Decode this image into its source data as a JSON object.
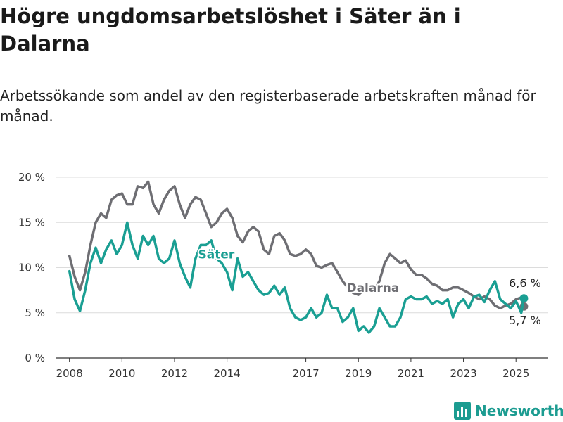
{
  "header": {
    "title": "Högre ungdomsarbetslöshet i Säter än i Dalarna",
    "subtitle": "Arbetssökande som andel av den registerbaserade arbetskraften månad för månad."
  },
  "brand": {
    "name": "Newsworthy",
    "color": "#1c9c91"
  },
  "chart_data": {
    "type": "line",
    "title": "Högre ungdomsarbetslöshet i Säter än i Dalarna",
    "subtitle": "Arbetssökande som andel av den registerbaserade arbetskraften månad för månad.",
    "xlabel": "",
    "ylabel": "",
    "xlim": [
      2007.5,
      2026.2
    ],
    "ylim": [
      0,
      20
    ],
    "y_ticks": [
      0,
      5,
      10,
      15,
      20
    ],
    "y_tick_labels": [
      "0 %",
      "5 %",
      "10 %",
      "15 %",
      "20 %"
    ],
    "x_ticks": [
      2008,
      2010,
      2012,
      2014,
      2017,
      2019,
      2021,
      2023,
      2025
    ],
    "x_tick_labels": [
      "2008",
      "2010",
      "2012",
      "2014",
      "2017",
      "2019",
      "2021",
      "2023",
      "2025"
    ],
    "grid": true,
    "legend": "inline labels",
    "series": [
      {
        "name": "Dalarna",
        "color": "#6e6e73",
        "end_label": "5,7 %",
        "x": [
          2008.0,
          2008.2,
          2008.4,
          2008.6,
          2008.8,
          2009.0,
          2009.2,
          2009.4,
          2009.6,
          2009.8,
          2010.0,
          2010.2,
          2010.4,
          2010.6,
          2010.8,
          2011.0,
          2011.2,
          2011.4,
          2011.6,
          2011.8,
          2012.0,
          2012.2,
          2012.4,
          2012.6,
          2012.8,
          2013.0,
          2013.2,
          2013.4,
          2013.6,
          2013.8,
          2014.0,
          2014.2,
          2014.4,
          2014.6,
          2014.8,
          2015.0,
          2015.2,
          2015.4,
          2015.6,
          2015.8,
          2016.0,
          2016.2,
          2016.4,
          2016.6,
          2016.8,
          2017.0,
          2017.2,
          2017.4,
          2017.6,
          2017.8,
          2018.0,
          2018.2,
          2018.4,
          2018.6,
          2018.8,
          2019.0,
          2019.2,
          2019.4,
          2019.6,
          2019.8,
          2020.0,
          2020.2,
          2020.4,
          2020.6,
          2020.8,
          2021.0,
          2021.2,
          2021.4,
          2021.6,
          2021.8,
          2022.0,
          2022.2,
          2022.4,
          2022.6,
          2022.8,
          2023.0,
          2023.2,
          2023.4,
          2023.6,
          2023.8,
          2024.0,
          2024.2,
          2024.4,
          2024.6,
          2024.8,
          2025.0,
          2025.2,
          2025.3
        ],
        "y": [
          11.3,
          9.0,
          7.5,
          9.5,
          12.5,
          15.0,
          16.0,
          15.5,
          17.5,
          18.0,
          18.2,
          17.0,
          17.0,
          19.0,
          18.8,
          19.5,
          17.0,
          16.0,
          17.5,
          18.5,
          19.0,
          17.0,
          15.5,
          17.0,
          17.8,
          17.5,
          16.0,
          14.5,
          15.0,
          16.0,
          16.5,
          15.5,
          13.5,
          12.8,
          14.0,
          14.5,
          14.0,
          12.0,
          11.5,
          13.5,
          13.8,
          13.0,
          11.5,
          11.3,
          11.5,
          12.0,
          11.5,
          10.2,
          10.0,
          10.3,
          10.5,
          9.5,
          8.5,
          7.8,
          7.2,
          7.0,
          7.5,
          7.3,
          7.5,
          8.5,
          10.5,
          11.5,
          11.0,
          10.5,
          10.8,
          9.8,
          9.2,
          9.2,
          8.8,
          8.2,
          8.0,
          7.5,
          7.5,
          7.8,
          7.8,
          7.5,
          7.2,
          6.8,
          6.5,
          6.8,
          6.5,
          5.8,
          5.5,
          5.8,
          6.0,
          6.5,
          6.7,
          5.7
        ]
      },
      {
        "name": "Säter",
        "color": "#1a9f93",
        "end_label": "6,6 %",
        "x": [
          2008.0,
          2008.2,
          2008.4,
          2008.6,
          2008.8,
          2009.0,
          2009.2,
          2009.4,
          2009.6,
          2009.8,
          2010.0,
          2010.2,
          2010.4,
          2010.6,
          2010.8,
          2011.0,
          2011.2,
          2011.4,
          2011.6,
          2011.8,
          2012.0,
          2012.2,
          2012.4,
          2012.6,
          2012.8,
          2013.0,
          2013.2,
          2013.4,
          2013.6,
          2013.8,
          2014.0,
          2014.2,
          2014.4,
          2014.6,
          2014.8,
          2015.0,
          2015.2,
          2015.4,
          2015.6,
          2015.8,
          2016.0,
          2016.2,
          2016.4,
          2016.6,
          2016.8,
          2017.0,
          2017.2,
          2017.4,
          2017.6,
          2017.8,
          2018.0,
          2018.2,
          2018.4,
          2018.6,
          2018.8,
          2019.0,
          2019.2,
          2019.4,
          2019.6,
          2019.8,
          2020.0,
          2020.2,
          2020.4,
          2020.6,
          2020.8,
          2021.0,
          2021.2,
          2021.4,
          2021.6,
          2021.8,
          2022.0,
          2022.2,
          2022.4,
          2022.6,
          2022.8,
          2023.0,
          2023.2,
          2023.4,
          2023.6,
          2023.8,
          2024.0,
          2024.2,
          2024.4,
          2024.6,
          2024.8,
          2025.0,
          2025.2,
          2025.3
        ],
        "y": [
          9.6,
          6.5,
          5.2,
          7.5,
          10.5,
          12.2,
          10.5,
          12.0,
          13.0,
          11.5,
          12.5,
          15.0,
          12.5,
          11.0,
          13.5,
          12.5,
          13.5,
          11.0,
          10.5,
          11.0,
          13.0,
          10.5,
          9.0,
          7.8,
          11.0,
          12.5,
          12.5,
          13.0,
          11.0,
          10.5,
          9.5,
          7.5,
          11.0,
          9.0,
          9.5,
          8.5,
          7.5,
          7.0,
          7.2,
          8.0,
          7.0,
          7.8,
          5.5,
          4.5,
          4.2,
          4.5,
          5.5,
          4.5,
          5.0,
          7.0,
          5.5,
          5.5,
          4.0,
          4.5,
          5.5,
          3.0,
          3.5,
          2.8,
          3.5,
          5.5,
          4.5,
          3.5,
          3.5,
          4.5,
          6.5,
          6.8,
          6.5,
          6.5,
          6.8,
          6.0,
          6.3,
          6.0,
          6.5,
          4.5,
          6.0,
          6.5,
          5.5,
          6.8,
          7.0,
          6.2,
          7.5,
          8.5,
          6.5,
          6.0,
          5.5,
          6.3,
          5.0,
          6.6
        ]
      }
    ]
  }
}
